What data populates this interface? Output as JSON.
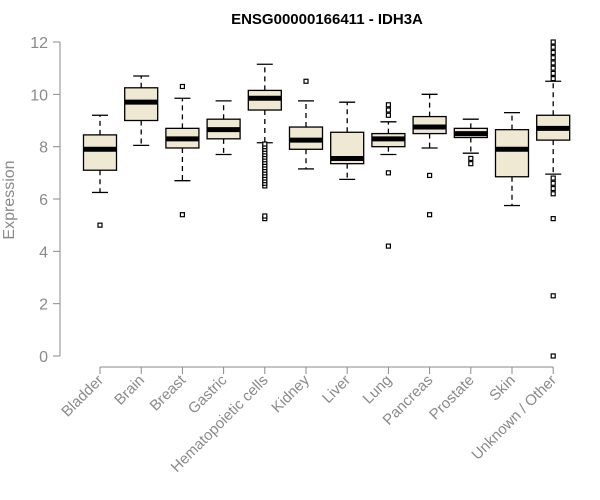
{
  "chart_data": {
    "type": "boxplot",
    "title": "ENSG00000166411 - IDH3A",
    "ylabel": "Expression",
    "xlabel": "",
    "ylim": [
      0,
      12
    ],
    "yticks": [
      0,
      2,
      4,
      6,
      8,
      10,
      12
    ],
    "grid": false,
    "box_fill": "#efe8d3",
    "box_stroke": "#000000",
    "categories": [
      "Bladder",
      "Brain",
      "Breast",
      "Gastric",
      "Hematopoietic cells",
      "Kidney",
      "Liver",
      "Lung",
      "Pancreas",
      "Prostate",
      "Skin",
      "Unknown / Other"
    ],
    "boxes": [
      {
        "category": "Bladder",
        "whisker_low": 6.25,
        "q1": 7.1,
        "median": 7.9,
        "q3": 8.45,
        "whisker_high": 9.2,
        "outliers": [
          5.0
        ]
      },
      {
        "category": "Brain",
        "whisker_low": 8.05,
        "q1": 9.0,
        "median": 9.7,
        "q3": 10.25,
        "whisker_high": 10.7,
        "outliers": []
      },
      {
        "category": "Breast",
        "whisker_low": 6.7,
        "q1": 7.95,
        "median": 8.3,
        "q3": 8.7,
        "whisker_high": 9.85,
        "outliers": [
          5.4,
          10.3
        ]
      },
      {
        "category": "Gastric",
        "whisker_low": 7.7,
        "q1": 8.3,
        "median": 8.65,
        "q3": 9.05,
        "whisker_high": 9.75,
        "outliers": []
      },
      {
        "category": "Hematopoietic cells",
        "whisker_low": 8.15,
        "q1": 9.4,
        "median": 9.85,
        "q3": 10.15,
        "whisker_high": 11.15,
        "outliers": [
          5.25,
          5.35,
          6.5,
          6.6,
          6.7,
          6.8,
          6.9,
          7.0,
          7.1,
          7.2,
          7.3,
          7.4,
          7.5,
          7.6,
          7.7,
          7.8,
          7.9,
          8.0,
          8.1
        ]
      },
      {
        "category": "Kidney",
        "whisker_low": 7.15,
        "q1": 7.9,
        "median": 8.25,
        "q3": 8.75,
        "whisker_high": 9.75,
        "outliers": [
          10.5
        ]
      },
      {
        "category": "Liver",
        "whisker_low": 6.75,
        "q1": 7.35,
        "median": 7.55,
        "q3": 8.55,
        "whisker_high": 9.7,
        "outliers": []
      },
      {
        "category": "Lung",
        "whisker_low": 7.7,
        "q1": 8.0,
        "median": 8.3,
        "q3": 8.5,
        "whisker_high": 8.95,
        "outliers": [
          4.2,
          7.0,
          9.2,
          9.4,
          9.6
        ]
      },
      {
        "category": "Pancreas",
        "whisker_low": 7.95,
        "q1": 8.5,
        "median": 8.75,
        "q3": 9.15,
        "whisker_high": 10.0,
        "outliers": [
          5.4,
          6.9
        ]
      },
      {
        "category": "Prostate",
        "whisker_low": 7.75,
        "q1": 8.35,
        "median": 8.5,
        "q3": 8.7,
        "whisker_high": 9.05,
        "outliers": [
          7.35,
          7.55
        ]
      },
      {
        "category": "Skin",
        "whisker_low": 5.75,
        "q1": 6.85,
        "median": 7.9,
        "q3": 8.65,
        "whisker_high": 9.3,
        "outliers": []
      },
      {
        "category": "Unknown / Other",
        "whisker_low": 6.95,
        "q1": 8.25,
        "median": 8.7,
        "q3": 9.2,
        "whisker_high": 10.5,
        "outliers": [
          0.0,
          2.3,
          5.25,
          6.2,
          6.4,
          6.6,
          6.8,
          10.6,
          10.8,
          11.0,
          11.2,
          11.4,
          11.6,
          11.8,
          12.0
        ]
      }
    ]
  }
}
